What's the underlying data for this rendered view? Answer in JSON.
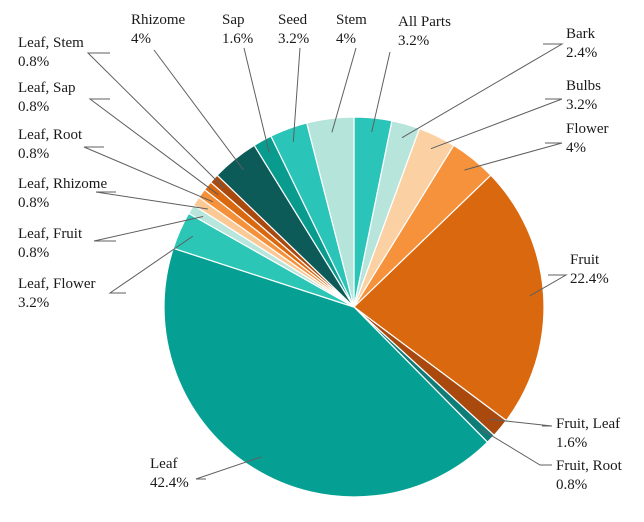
{
  "chart_data": {
    "type": "pie",
    "title": "",
    "unit": "%",
    "slices": [
      {
        "label": "All Parts",
        "value": 3.2,
        "value_label": "3.2%",
        "color": "#2ac5b8"
      },
      {
        "label": "Bark",
        "value": 2.4,
        "value_label": "2.4%",
        "color": "#b7e5dc"
      },
      {
        "label": "Bulbs",
        "value": 3.2,
        "value_label": "3.2%",
        "color": "#fbd1a4"
      },
      {
        "label": "Flower",
        "value": 4,
        "value_label": "4%",
        "color": "#f6923c"
      },
      {
        "label": "Fruit",
        "value": 22.4,
        "value_label": "22.4%",
        "color": "#d9680e"
      },
      {
        "label": "Fruit, Leaf",
        "value": 1.6,
        "value_label": "1.6%",
        "color": "#a9490e"
      },
      {
        "label": "Fruit, Root",
        "value": 0.8,
        "value_label": "0.8%",
        "color": "#0f7c78"
      },
      {
        "label": "Leaf",
        "value": 42.4,
        "value_label": "42.4%",
        "color": "#05a093"
      },
      {
        "label": "Leaf, Flower",
        "value": 3.2,
        "value_label": "3.2%",
        "color": "#2cc6b6"
      },
      {
        "label": "Leaf, Fruit",
        "value": 0.8,
        "value_label": "0.8%",
        "color": "#b9e6dc"
      },
      {
        "label": "Leaf, Rhizome",
        "value": 0.8,
        "value_label": "0.8%",
        "color": "#fbc995"
      },
      {
        "label": "Leaf, Root",
        "value": 0.8,
        "value_label": "0.8%",
        "color": "#f4913a"
      },
      {
        "label": "Leaf, Sap",
        "value": 0.8,
        "value_label": "0.8%",
        "color": "#d9680e"
      },
      {
        "label": "Leaf, Stem",
        "value": 0.8,
        "value_label": "0.8%",
        "color": "#a9490e"
      },
      {
        "label": "Rhizome",
        "value": 4,
        "value_label": "4%",
        "color": "#0c5b58"
      },
      {
        "label": "Sap",
        "value": 1.6,
        "value_label": "1.6%",
        "color": "#0a9b8f"
      },
      {
        "label": "Seed",
        "value": 3.2,
        "value_label": "3.2%",
        "color": "#2ac5b8"
      },
      {
        "label": "Stem",
        "value": 4,
        "value_label": "4%",
        "color": "#b5e4da"
      }
    ],
    "start": "top",
    "direction": "clockwise",
    "legend": "none",
    "data_labels": "outside-with-leader-lines"
  }
}
